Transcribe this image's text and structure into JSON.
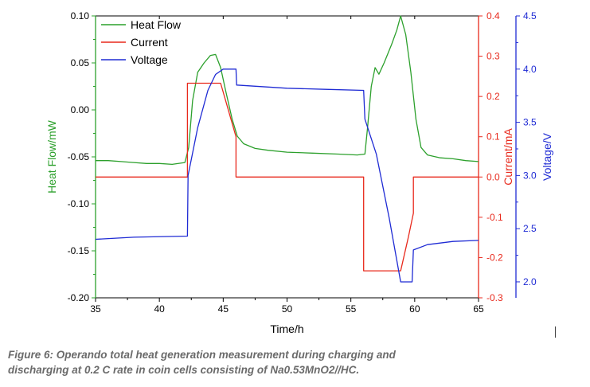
{
  "caption": "Figure 6: Operando total heat generation measurement during charging and discharging at 0.2 C rate in coin cells consisting of Na0.53MnO2//HC.",
  "chart_data": {
    "type": "line",
    "xlabel": "Time/h",
    "xlim": [
      35,
      65
    ],
    "xticks": [
      35,
      40,
      45,
      50,
      55,
      60,
      65
    ],
    "axes": {
      "heat": {
        "label": "Heat Flow/mW",
        "lim": [
          -0.2,
          0.1
        ],
        "ticks": [
          0.1,
          0.05,
          0.0,
          -0.05,
          -0.1,
          -0.15,
          -0.2
        ],
        "tick_labels": [
          "0.10",
          "0.05",
          "0.00",
          "-0.05",
          "-0.10",
          "-0.15",
          "-0.20"
        ],
        "color": "#2ca02c"
      },
      "current": {
        "label": "Current/mA",
        "lim": [
          -0.3,
          0.4
        ],
        "ticks": [
          0.4,
          0.3,
          0.2,
          0.1,
          0.0,
          -0.1,
          -0.2,
          -0.3
        ],
        "tick_labels": [
          "0.4",
          "0.3",
          "0.2",
          "0.1",
          "0.0",
          "-0.1",
          "-0.2",
          "-0.3"
        ],
        "color": "#e8291c"
      },
      "voltage": {
        "label": "Voltage/V",
        "lim": [
          1.85,
          4.5
        ],
        "ticks": [
          4.5,
          4.0,
          3.5,
          3.0,
          2.5,
          2.0
        ],
        "tick_labels": [
          "4.5",
          "4.0",
          "3.5",
          "3.0",
          "2.5",
          "2.0"
        ],
        "color": "#1f2bd4"
      }
    },
    "legend_position": "top-left",
    "series": [
      {
        "name": "Heat Flow",
        "axis": "heat",
        "color": "#2ca02c",
        "points": [
          [
            35,
            -0.054
          ],
          [
            36,
            -0.054
          ],
          [
            37,
            -0.055
          ],
          [
            38,
            -0.056
          ],
          [
            39,
            -0.057
          ],
          [
            40,
            -0.057
          ],
          [
            41,
            -0.058
          ],
          [
            42,
            -0.056
          ],
          [
            42.3,
            -0.04
          ],
          [
            42.6,
            0.01
          ],
          [
            43,
            0.04
          ],
          [
            43.5,
            0.05
          ],
          [
            44,
            0.058
          ],
          [
            44.4,
            0.059
          ],
          [
            44.8,
            0.045
          ],
          [
            45.2,
            0.02
          ],
          [
            45.7,
            -0.01
          ],
          [
            46.1,
            -0.028
          ],
          [
            46.6,
            -0.036
          ],
          [
            47.5,
            -0.041
          ],
          [
            48.5,
            -0.043
          ],
          [
            50,
            -0.045
          ],
          [
            52,
            -0.046
          ],
          [
            54,
            -0.047
          ],
          [
            55.5,
            -0.048
          ],
          [
            56.1,
            -0.047
          ],
          [
            56.3,
            -0.02
          ],
          [
            56.6,
            0.025
          ],
          [
            56.9,
            0.045
          ],
          [
            57.2,
            0.038
          ],
          [
            57.6,
            0.05
          ],
          [
            58.2,
            0.07
          ],
          [
            58.6,
            0.085
          ],
          [
            58.9,
            0.1
          ],
          [
            59.3,
            0.08
          ],
          [
            59.7,
            0.04
          ],
          [
            60.1,
            -0.01
          ],
          [
            60.5,
            -0.04
          ],
          [
            61,
            -0.048
          ],
          [
            62,
            -0.051
          ],
          [
            63,
            -0.052
          ],
          [
            64,
            -0.054
          ],
          [
            65,
            -0.055
          ]
        ]
      },
      {
        "name": "Current",
        "axis": "current",
        "color": "#e8291c",
        "points": [
          [
            35,
            0.0
          ],
          [
            42.2,
            0.0
          ],
          [
            42.2,
            0.233
          ],
          [
            44.8,
            0.233
          ],
          [
            46.0,
            0.1
          ],
          [
            46.0,
            0.0
          ],
          [
            56.0,
            0.0
          ],
          [
            56.0,
            -0.233
          ],
          [
            58.9,
            -0.233
          ],
          [
            59.5,
            -0.15
          ],
          [
            59.9,
            -0.09
          ],
          [
            59.9,
            0.0
          ],
          [
            65,
            0.0
          ]
        ]
      },
      {
        "name": "Voltage",
        "axis": "voltage",
        "color": "#1f2bd4",
        "points": [
          [
            35,
            2.4
          ],
          [
            38,
            2.42
          ],
          [
            42.2,
            2.43
          ],
          [
            42.25,
            3.0
          ],
          [
            43,
            3.45
          ],
          [
            43.8,
            3.8
          ],
          [
            44.4,
            3.95
          ],
          [
            45,
            4.0
          ],
          [
            46,
            4.0
          ],
          [
            46.05,
            3.85
          ],
          [
            50,
            3.82
          ],
          [
            53,
            3.81
          ],
          [
            56,
            3.8
          ],
          [
            56.1,
            3.53
          ],
          [
            57,
            3.2
          ],
          [
            58,
            2.6
          ],
          [
            58.6,
            2.2
          ],
          [
            58.9,
            2.0
          ],
          [
            59.8,
            2.0
          ],
          [
            59.9,
            2.3
          ],
          [
            61,
            2.35
          ],
          [
            63,
            2.38
          ],
          [
            65,
            2.39
          ]
        ]
      }
    ]
  }
}
